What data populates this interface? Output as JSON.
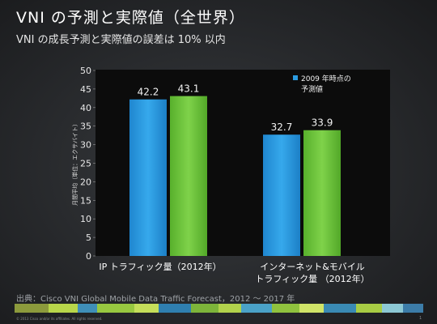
{
  "title": "VNI の予測と実際値（全世界）",
  "subtitle": "VNI の成長予測と実際値の誤差は 10% 以内",
  "source": "出典：Cisco VNI Global Mobile Data Traffic Forecast，2012 ～ 2017 年",
  "copyright": "© 2013 Cisco and/or its affiliates. All rights reserved.",
  "page_number": "1",
  "chart_data": {
    "type": "bar",
    "ylabel": "月間平均（単位：エクサバイト）",
    "ylim": [
      0,
      50
    ],
    "yticks": [
      0,
      5,
      10,
      15,
      20,
      25,
      30,
      35,
      40,
      45,
      50
    ],
    "categories": [
      [
        "IP トラフィック量（2012年）"
      ],
      [
        "インターネット&モバイル",
        "トラフィック量 （2012年）"
      ]
    ],
    "series": [
      {
        "name": "2009 年時点の予測値",
        "values": [
          42.2,
          32.7
        ],
        "color": "#2b9be0"
      },
      {
        "values": [
          43.1,
          33.9
        ],
        "color": "#6cc43c"
      }
    ],
    "data_labels": [
      [
        "42.2",
        "32.7"
      ],
      [
        "43.1",
        "33.9"
      ]
    ],
    "legend": {
      "placement": "top-right",
      "lines": [
        "2009 年時点の",
        "予測値"
      ]
    }
  }
}
